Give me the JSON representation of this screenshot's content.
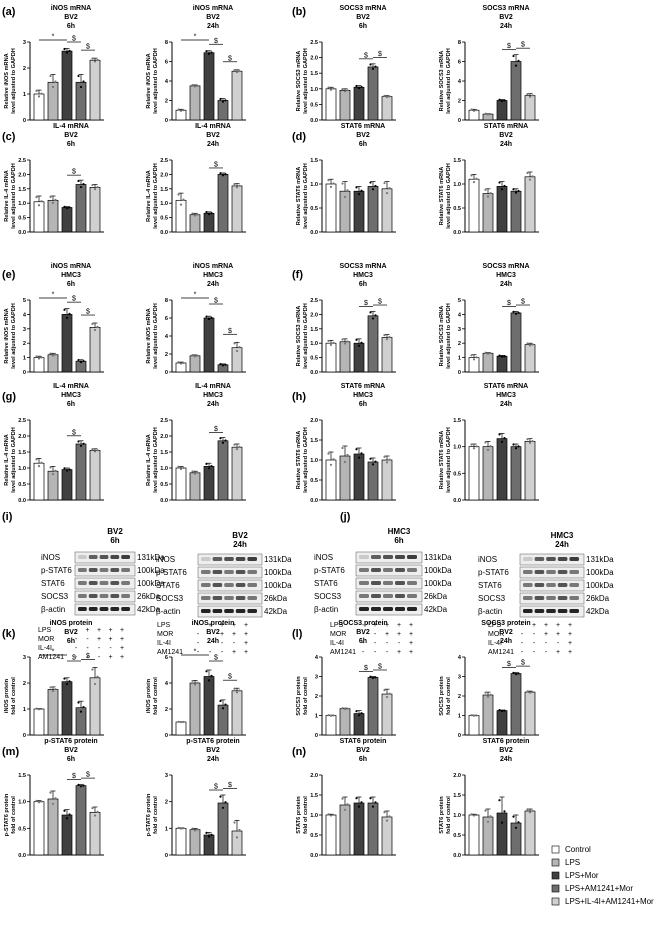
{
  "palette": [
    "#ffffff",
    "#b5b5b5",
    "#404040",
    "#6e6e6e",
    "#d0d0d0"
  ],
  "legend": {
    "entries": [
      "Control",
      "LPS",
      "LPS+Mor",
      "LPS+AM1241+Mor",
      "LPS+IL-4I+AM1241+Mor"
    ]
  },
  "panel_letters": [
    "(a)",
    "(b)",
    "(c)",
    "(d)",
    "(e)",
    "(f)",
    "(g)",
    "(h)",
    "(i)",
    "(j)",
    "(k)",
    "(l)",
    "(m)",
    "(n)"
  ],
  "western": {
    "kda_labels": [
      "131kDa",
      "100kDa",
      "100kDa",
      "26kDa",
      "42kDa"
    ],
    "blots": [
      {
        "title": [
          "BV2",
          "6h"
        ],
        "proteins": [
          "iNOS",
          "p-STAT6",
          "STAT6",
          "SOCS3",
          "β-actin"
        ]
      },
      {
        "title": [
          "BV2",
          "24h"
        ],
        "proteins": [
          "iNOS",
          "p-STAT6",
          "STAT6",
          "SOCS3",
          "β-actin"
        ]
      },
      {
        "title": [
          "HMC3",
          "6h"
        ],
        "proteins": [
          "iNOS",
          "p-STAT6",
          "STAT6",
          "SOCS3",
          "β-actin"
        ]
      },
      {
        "title": [
          "HMC3",
          "24h"
        ],
        "proteins": [
          "iNOS",
          "p-STAT6",
          "STAT6",
          "SOCS3",
          "β-actin"
        ]
      }
    ],
    "treatment_rows": [
      {
        "label": "LPS",
        "signs": [
          "-",
          "+",
          "+",
          "+",
          "+"
        ]
      },
      {
        "label": "MOR",
        "signs": [
          "-",
          "-",
          "+",
          "+",
          "+"
        ]
      },
      {
        "label": "IL-4I",
        "signs": [
          "-",
          "-",
          "-",
          "-",
          "+"
        ]
      },
      {
        "label": "AM1241",
        "signs": [
          "-",
          "-",
          "-",
          "+",
          "+"
        ]
      }
    ]
  },
  "chart_data": [
    {
      "type": "bar",
      "title": [
        "iNOS mRNA",
        "BV2",
        "6h"
      ],
      "ylabel": [
        "Relative iNOS mRNA",
        "level adjusted to GAPDH"
      ],
      "ylim": [
        0,
        3
      ],
      "ticks": [
        0,
        1,
        2,
        3
      ],
      "values": [
        1.0,
        1.45,
        2.65,
        1.45,
        2.3
      ],
      "errors": [
        0.15,
        0.3,
        0.1,
        0.3,
        0.08
      ],
      "significance": [
        {
          "from": 0,
          "to": 2,
          "symbol": "*"
        },
        {
          "from": 2,
          "to": 3,
          "symbol": "$"
        },
        {
          "from": 3,
          "to": 4,
          "symbol": "$"
        }
      ]
    },
    {
      "type": "bar",
      "title": [
        "iNOS mRNA",
        "BV2",
        "24h"
      ],
      "ylabel": [
        "Relative iNOS mRNA",
        "level adjusted to GAPDH"
      ],
      "ylim": [
        0,
        8
      ],
      "ticks": [
        0,
        2,
        4,
        6,
        8
      ],
      "values": [
        1.0,
        3.5,
        6.9,
        2.0,
        5.0
      ],
      "errors": [
        0.1,
        0.1,
        0.2,
        0.2,
        0.15
      ],
      "significance": [
        {
          "from": 0,
          "to": 2,
          "symbol": "*"
        },
        {
          "from": 2,
          "to": 3,
          "symbol": "$"
        },
        {
          "from": 3,
          "to": 4,
          "symbol": "$"
        }
      ]
    },
    {
      "type": "bar",
      "title": [
        "SOCS3 mRNA",
        "BV2",
        "6h"
      ],
      "ylabel": [
        "Relative SOCS3 mRNA",
        "level adjusted to GAPDH"
      ],
      "ylim": [
        0,
        2.5
      ],
      "ticks": [
        0.0,
        0.5,
        1.0,
        1.5,
        2.0,
        2.5
      ],
      "values": [
        1.0,
        0.95,
        1.05,
        1.7,
        0.75
      ],
      "errors": [
        0.05,
        0.05,
        0.05,
        0.1,
        0.03
      ],
      "significance": [
        {
          "from": 2,
          "to": 3,
          "symbol": "$"
        },
        {
          "from": 3,
          "to": 4,
          "symbol": "$"
        }
      ]
    },
    {
      "type": "bar",
      "title": [
        "SOCS3 mRNA",
        "BV2",
        "24h"
      ],
      "ylabel": [
        "Relative SOCS3 mRNA",
        "level adjusted to GAPDH"
      ],
      "ylim": [
        0,
        8
      ],
      "ticks": [
        0,
        2,
        4,
        6,
        8
      ],
      "values": [
        1.0,
        0.6,
        2.0,
        6.0,
        2.5
      ],
      "errors": [
        0.1,
        0.05,
        0.1,
        0.7,
        0.2
      ],
      "significance": [
        {
          "from": 2,
          "to": 3,
          "symbol": "$"
        },
        {
          "from": 3,
          "to": 4,
          "symbol": "$"
        }
      ]
    },
    {
      "type": "bar",
      "title": [
        "IL-4 mRNA",
        "BV2",
        "6h"
      ],
      "ylabel": [
        "Relative IL-4 mRNA",
        "level adjusted to GAPDH"
      ],
      "ylim": [
        0,
        2.5
      ],
      "ticks": [
        0.0,
        0.5,
        1.0,
        1.5,
        2.0,
        2.5
      ],
      "values": [
        1.05,
        1.1,
        0.85,
        1.65,
        1.55
      ],
      "errors": [
        0.2,
        0.15,
        0.03,
        0.15,
        0.1
      ],
      "significance": [
        {
          "from": 2,
          "to": 3,
          "symbol": "$"
        }
      ]
    },
    {
      "type": "bar",
      "title": [
        "IL-4 mRNA",
        "BV2",
        "24h"
      ],
      "ylabel": [
        "Relative IL-4 mRNA",
        "level adjusted to GAPDH"
      ],
      "ylim": [
        0,
        2.5
      ],
      "ticks": [
        0.0,
        0.5,
        1.0,
        1.5,
        2.0,
        2.5
      ],
      "values": [
        1.1,
        0.6,
        0.65,
        2.0,
        1.6
      ],
      "errors": [
        0.25,
        0.05,
        0.05,
        0.05,
        0.08
      ],
      "significance": [
        {
          "from": 2,
          "to": 3,
          "symbol": "$"
        }
      ]
    },
    {
      "type": "bar",
      "title": [
        "STAT6 mRNA",
        "BV2",
        "6h"
      ],
      "ylabel": [
        "Relative STAT6 mRNA",
        "level adjusted to GAPDH"
      ],
      "ylim": [
        0,
        1.5
      ],
      "ticks": [
        0.0,
        0.5,
        1.0,
        1.5
      ],
      "values": [
        1.0,
        0.85,
        0.85,
        0.95,
        0.9
      ],
      "errors": [
        0.1,
        0.2,
        0.1,
        0.1,
        0.15
      ],
      "significance": []
    },
    {
      "type": "bar",
      "title": [
        "STAT6 mRNA",
        "BV2",
        "24h"
      ],
      "ylabel": [
        "Relative STAT6 mRNA",
        "level adjusted to GAPDH"
      ],
      "ylim": [
        0,
        1.5
      ],
      "ticks": [
        0.0,
        0.5,
        1.0,
        1.5
      ],
      "values": [
        1.1,
        0.8,
        0.95,
        0.85,
        1.15
      ],
      "errors": [
        0.1,
        0.1,
        0.1,
        0.05,
        0.1
      ],
      "significance": []
    },
    {
      "type": "bar",
      "title": [
        "iNOS mRNA",
        "HMC3",
        "6h"
      ],
      "ylabel": [
        "Relative iNOS mRNA",
        "level adjusted to GAPDH"
      ],
      "ylim": [
        0,
        5
      ],
      "ticks": [
        0,
        1,
        2,
        3,
        4,
        5
      ],
      "values": [
        1.0,
        1.2,
        4.0,
        0.75,
        3.1
      ],
      "errors": [
        0.1,
        0.1,
        0.4,
        0.1,
        0.3
      ],
      "significance": [
        {
          "from": 0,
          "to": 2,
          "symbol": "*"
        },
        {
          "from": 2,
          "to": 3,
          "symbol": "$"
        },
        {
          "from": 3,
          "to": 4,
          "symbol": "$"
        }
      ]
    },
    {
      "type": "bar",
      "title": [
        "iNOS mRNA",
        "HMC3",
        "24h"
      ],
      "ylabel": [
        "Relative iNOS mRNA",
        "level adjusted to GAPDH"
      ],
      "ylim": [
        0,
        8
      ],
      "ticks": [
        0,
        2,
        4,
        6,
        8
      ],
      "values": [
        1.0,
        1.8,
        6.0,
        0.8,
        2.7
      ],
      "errors": [
        0.1,
        0.1,
        0.2,
        0.1,
        0.6
      ],
      "significance": [
        {
          "from": 0,
          "to": 2,
          "symbol": "*"
        },
        {
          "from": 2,
          "to": 3,
          "symbol": "$"
        },
        {
          "from": 3,
          "to": 4,
          "symbol": "$"
        }
      ]
    },
    {
      "type": "bar",
      "title": [
        "SOCS3 mRNA",
        "HMC3",
        "6h"
      ],
      "ylabel": [
        "Relative SOCS3 mRNA",
        "level adjusted to GAPDH"
      ],
      "ylim": [
        0,
        2.5
      ],
      "ticks": [
        0.0,
        0.5,
        1.0,
        1.5,
        2.0,
        2.5
      ],
      "values": [
        1.0,
        1.05,
        1.0,
        1.95,
        1.2
      ],
      "errors": [
        0.1,
        0.1,
        0.15,
        0.15,
        0.1
      ],
      "significance": [
        {
          "from": 2,
          "to": 3,
          "symbol": "$"
        },
        {
          "from": 3,
          "to": 4,
          "symbol": "$"
        }
      ]
    },
    {
      "type": "bar",
      "title": [
        "SOCS3 mRNA",
        "HMC3",
        "24h"
      ],
      "ylabel": [
        "Relative SOCS3 mRNA",
        "level adjusted to GAPDH"
      ],
      "ylim": [
        0,
        5
      ],
      "ticks": [
        0,
        1,
        2,
        3,
        4,
        5
      ],
      "values": [
        1.0,
        1.3,
        1.1,
        4.1,
        1.9
      ],
      "errors": [
        0.2,
        0.05,
        0.05,
        0.1,
        0.1
      ],
      "significance": [
        {
          "from": 2,
          "to": 3,
          "symbol": "$"
        },
        {
          "from": 3,
          "to": 4,
          "symbol": "$"
        }
      ]
    },
    {
      "type": "bar",
      "title": [
        "IL-4 mRNA",
        "HMC3",
        "6h"
      ],
      "ylabel": [
        "Relative IL-4 mRNA",
        "level adjusted to GAPDH"
      ],
      "ylim": [
        0,
        2.5
      ],
      "ticks": [
        0.0,
        0.5,
        1.0,
        1.5,
        2.0,
        2.5
      ],
      "values": [
        1.15,
        0.9,
        0.95,
        1.75,
        1.55
      ],
      "errors": [
        0.15,
        0.15,
        0.05,
        0.1,
        0.05
      ],
      "significance": [
        {
          "from": 2,
          "to": 3,
          "symbol": "$"
        }
      ]
    },
    {
      "type": "bar",
      "title": [
        "IL-4 mRNA",
        "HMC3",
        "24h"
      ],
      "ylabel": [
        "Relative IL-4 mRNA",
        "level adjusted to GAPDH"
      ],
      "ylim": [
        0,
        2.5
      ],
      "ticks": [
        0.0,
        0.5,
        1.0,
        1.5,
        2.0,
        2.5
      ],
      "values": [
        1.0,
        0.85,
        1.05,
        1.85,
        1.65
      ],
      "errors": [
        0.05,
        0.05,
        0.1,
        0.1,
        0.1
      ],
      "significance": [
        {
          "from": 2,
          "to": 3,
          "symbol": "$"
        }
      ]
    },
    {
      "type": "bar",
      "title": [
        "STAT6 mRNA",
        "HMC3",
        "6h"
      ],
      "ylabel": [
        "Relative STAT6 mRNA",
        "level adjusted to GAPDH"
      ],
      "ylim": [
        0,
        2.0
      ],
      "ticks": [
        0.0,
        0.5,
        1.0,
        1.5,
        2.0
      ],
      "values": [
        1.0,
        1.1,
        1.15,
        0.95,
        1.0
      ],
      "errors": [
        0.2,
        0.25,
        0.15,
        0.1,
        0.1
      ],
      "significance": []
    },
    {
      "type": "bar",
      "title": [
        "STAT6 mRNA",
        "HMC3",
        "24h"
      ],
      "ylabel": [
        "Relative STAT6 mRNA",
        "level adjusted to GAPDH"
      ],
      "ylim": [
        0,
        1.5
      ],
      "ticks": [
        0.0,
        0.5,
        1.0,
        1.5
      ],
      "values": [
        1.0,
        1.0,
        1.15,
        1.0,
        1.1
      ],
      "errors": [
        0.05,
        0.1,
        0.1,
        0.05,
        0.05
      ],
      "significance": []
    },
    {
      "type": "bar",
      "title": [
        "iNOS protein",
        "BV2",
        "6h"
      ],
      "ylabel": [
        "iNOS protein",
        "fold of control"
      ],
      "ylim": [
        0,
        3
      ],
      "ticks": [
        0,
        1,
        2,
        3
      ],
      "values": [
        1.0,
        1.75,
        2.05,
        1.05,
        2.2
      ],
      "errors": [
        0.02,
        0.1,
        0.15,
        0.25,
        0.4
      ],
      "significance": [
        {
          "from": 0,
          "to": 2,
          "symbol": "*"
        },
        {
          "from": 2,
          "to": 3,
          "symbol": "$"
        },
        {
          "from": 3,
          "to": 4,
          "symbol": "$"
        }
      ]
    },
    {
      "type": "bar",
      "title": [
        "iNOS protein",
        "BV2",
        "24h"
      ],
      "ylabel": [
        "iNOS protein",
        "fold of control"
      ],
      "ylim": [
        0,
        6
      ],
      "ticks": [
        0,
        2,
        4,
        6
      ],
      "values": [
        1.0,
        4.0,
        4.5,
        2.3,
        3.4
      ],
      "errors": [
        0.02,
        0.2,
        0.5,
        0.4,
        0.2
      ],
      "significance": [
        {
          "from": 0,
          "to": 2,
          "symbol": "*"
        },
        {
          "from": 2,
          "to": 3,
          "symbol": "$"
        },
        {
          "from": 3,
          "to": 4,
          "symbol": "$"
        }
      ]
    },
    {
      "type": "bar",
      "title": [
        "SOCS3 protein",
        "BV2",
        "6h"
      ],
      "ylabel": [
        "SOCS3 protein",
        "fold of control"
      ],
      "ylim": [
        0,
        4
      ],
      "ticks": [
        0,
        1,
        2,
        3,
        4
      ],
      "values": [
        1.0,
        1.35,
        1.1,
        2.95,
        2.1
      ],
      "errors": [
        0.02,
        0.03,
        0.15,
        0.05,
        0.25
      ],
      "significance": [
        {
          "from": 2,
          "to": 3,
          "symbol": "$"
        },
        {
          "from": 3,
          "to": 4,
          "symbol": "$"
        }
      ]
    },
    {
      "type": "bar",
      "title": [
        "SOCS3 protein",
        "BV2",
        "24h"
      ],
      "ylabel": [
        "SOCS3 protein",
        "fold of control"
      ],
      "ylim": [
        0,
        4
      ],
      "ticks": [
        0,
        1,
        2,
        3,
        4
      ],
      "values": [
        1.0,
        2.05,
        1.25,
        3.15,
        2.2
      ],
      "errors": [
        0.02,
        0.15,
        0.03,
        0.05,
        0.05
      ],
      "significance": [
        {
          "from": 2,
          "to": 3,
          "symbol": "$"
        },
        {
          "from": 3,
          "to": 4,
          "symbol": "$"
        }
      ]
    },
    {
      "type": "bar",
      "title": [
        "p-STAT6 protein",
        "BV2",
        "6h"
      ],
      "ylabel": [
        "p-STAT6 protein",
        "fold of control"
      ],
      "ylim": [
        0,
        1.5
      ],
      "ticks": [
        0.0,
        0.5,
        1.0,
        1.5
      ],
      "values": [
        1.0,
        1.05,
        0.75,
        1.3,
        0.8
      ],
      "errors": [
        0.02,
        0.15,
        0.1,
        0.02,
        0.1
      ],
      "significance": [
        {
          "from": 2,
          "to": 3,
          "symbol": "$"
        },
        {
          "from": 3,
          "to": 4,
          "symbol": "$"
        }
      ]
    },
    {
      "type": "bar",
      "title": [
        "p-STAT6 protein",
        "BV2",
        "24h"
      ],
      "ylabel": [
        "p-STAT6 protein",
        "fold of control"
      ],
      "ylim": [
        0,
        3
      ],
      "ticks": [
        0,
        1,
        2,
        3
      ],
      "values": [
        1.0,
        0.95,
        0.75,
        1.95,
        0.9
      ],
      "errors": [
        0.02,
        0.05,
        0.1,
        0.3,
        0.4
      ],
      "significance": [
        {
          "from": 2,
          "to": 3,
          "symbol": "$"
        },
        {
          "from": 3,
          "to": 4,
          "symbol": "$"
        }
      ]
    },
    {
      "type": "bar",
      "title": [
        "STAT6 protein",
        "BV2",
        "6h"
      ],
      "ylabel": [
        "STAT6 protein",
        "fold of control"
      ],
      "ylim": [
        0,
        2.0
      ],
      "ticks": [
        0.0,
        0.5,
        1.0,
        1.5,
        2.0
      ],
      "values": [
        1.0,
        1.25,
        1.3,
        1.3,
        0.95
      ],
      "errors": [
        0.02,
        0.2,
        0.15,
        0.15,
        0.15
      ],
      "significance": []
    },
    {
      "type": "bar",
      "title": [
        "STAT6 protein",
        "BV2",
        "24h"
      ],
      "ylabel": [
        "STAT6 protein",
        "fold of control"
      ],
      "ylim": [
        0,
        2.0
      ],
      "ticks": [
        0.0,
        0.5,
        1.0,
        1.5,
        2.0
      ],
      "values": [
        1.0,
        0.95,
        1.05,
        0.8,
        1.1
      ],
      "errors": [
        0.02,
        0.2,
        0.4,
        0.2,
        0.05
      ],
      "significance": []
    }
  ]
}
